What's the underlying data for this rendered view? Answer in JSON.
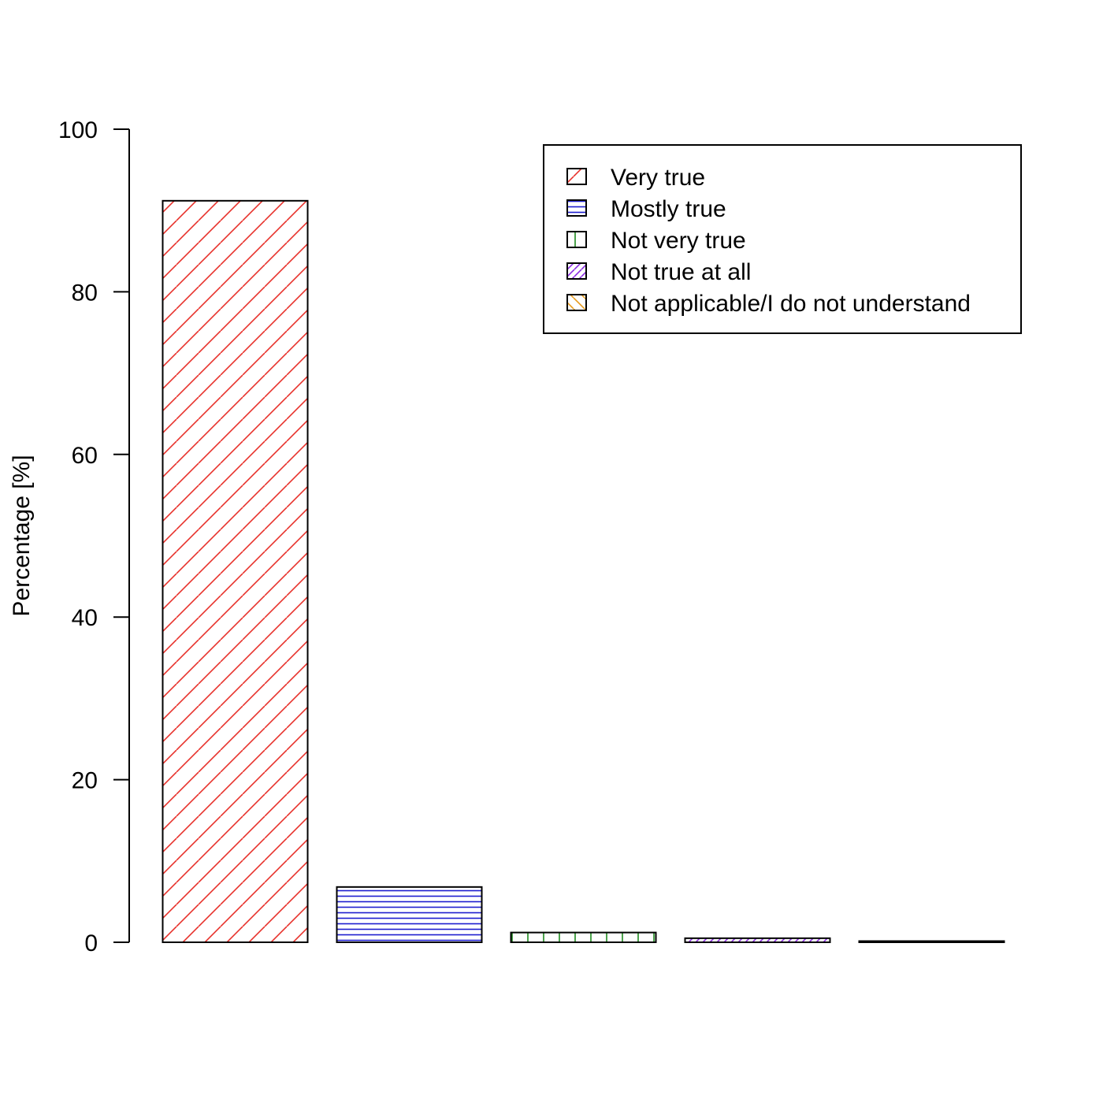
{
  "chart_data": {
    "type": "bar",
    "title": "",
    "xlabel": "",
    "ylabel": "Percentage [%]",
    "ylim": [
      0,
      100
    ],
    "yticks": [
      0,
      20,
      40,
      60,
      80,
      100
    ],
    "grid": false,
    "legend_position": "top-right",
    "categories": [
      "Very true",
      "Mostly true",
      "Not very true",
      "Not true at all",
      "Not applicable/I do not understand"
    ],
    "values": [
      91.2,
      6.8,
      1.2,
      0.5,
      0.1
    ],
    "colors": [
      "#e8312b",
      "#1c1ccf",
      "#1f8a1f",
      "#8a2be2",
      "#e69a1a"
    ],
    "patterns": [
      "diagonal-45",
      "horizontal",
      "vertical",
      "diagonal-45-dense",
      "diagonal-135"
    ]
  }
}
